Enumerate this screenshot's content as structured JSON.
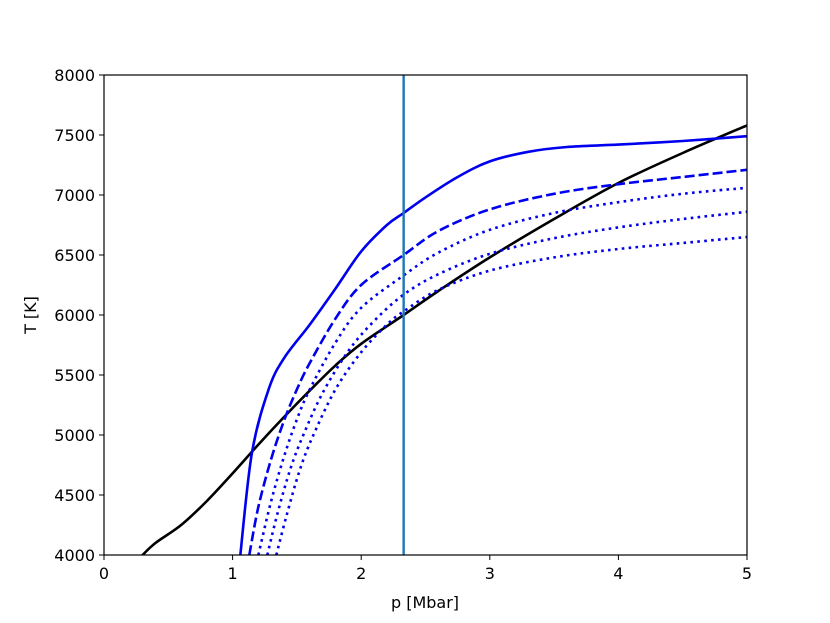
{
  "chart_data": {
    "type": "line",
    "title": "",
    "xlabel": "p [Mbar]",
    "ylabel": "T [K]",
    "xlim": [
      0,
      5
    ],
    "ylim": [
      4000,
      8000
    ],
    "xticks": [
      0,
      1,
      2,
      3,
      4,
      5
    ],
    "yticks": [
      4000,
      4500,
      5000,
      5500,
      6000,
      6500,
      7000,
      7500,
      8000
    ],
    "grid": false,
    "legend": "none",
    "vline": {
      "x": 2.33,
      "color": "#1f77b4"
    },
    "series": [
      {
        "color": "#000000",
        "style": "solid",
        "x": [
          0.3,
          0.4,
          0.6,
          0.8,
          1.0,
          1.2,
          1.4,
          1.6,
          1.8,
          2.0,
          2.33,
          2.6,
          3.0,
          3.5,
          4.0,
          4.5,
          5.0
        ],
        "y": [
          4000,
          4100,
          4250,
          4450,
          4680,
          4920,
          5150,
          5370,
          5580,
          5760,
          6000,
          6200,
          6480,
          6800,
          7100,
          7350,
          7580
        ]
      },
      {
        "color": "#0000ee",
        "style": "solid",
        "x": [
          1.06,
          1.15,
          1.28,
          1.4,
          1.6,
          1.8,
          2.0,
          2.2,
          2.33,
          2.5,
          2.75,
          3.0,
          3.3,
          3.6,
          4.0,
          4.5,
          5.0
        ],
        "y": [
          4000,
          4850,
          5380,
          5640,
          5920,
          6220,
          6530,
          6750,
          6850,
          6980,
          7150,
          7280,
          7360,
          7400,
          7420,
          7450,
          7490
        ]
      },
      {
        "color": "#0000ee",
        "style": "dashed",
        "x": [
          1.13,
          1.2,
          1.3,
          1.4,
          1.5,
          1.6,
          1.8,
          2.0,
          2.33,
          2.6,
          3.0,
          3.5,
          4.0,
          4.5,
          5.0
        ],
        "y": [
          4000,
          4400,
          4800,
          5120,
          5380,
          5600,
          5970,
          6250,
          6500,
          6700,
          6880,
          7010,
          7090,
          7150,
          7210
        ]
      },
      {
        "color": "#0000ee",
        "style": "dotted",
        "x": [
          1.2,
          1.3,
          1.4,
          1.5,
          1.6,
          1.8,
          2.0,
          2.33,
          2.6,
          3.0,
          3.5,
          4.0,
          4.5,
          5.0
        ],
        "y": [
          4000,
          4450,
          4820,
          5130,
          5380,
          5770,
          6060,
          6330,
          6520,
          6710,
          6850,
          6940,
          7010,
          7060
        ]
      },
      {
        "color": "#0000ee",
        "style": "dotted",
        "x": [
          1.27,
          1.35,
          1.45,
          1.55,
          1.7,
          1.9,
          2.1,
          2.33,
          2.6,
          3.0,
          3.5,
          4.0,
          4.5,
          5.0
        ],
        "y": [
          4000,
          4350,
          4720,
          5000,
          5350,
          5700,
          5950,
          6170,
          6340,
          6510,
          6640,
          6730,
          6800,
          6860
        ]
      },
      {
        "color": "#0000ee",
        "style": "dotted",
        "x": [
          1.34,
          1.42,
          1.52,
          1.62,
          1.8,
          2.0,
          2.2,
          2.33,
          2.6,
          3.0,
          3.5,
          4.0,
          4.5,
          5.0
        ],
        "y": [
          4000,
          4330,
          4700,
          4980,
          5380,
          5690,
          5920,
          6030,
          6210,
          6370,
          6480,
          6550,
          6600,
          6650
        ]
      }
    ]
  }
}
